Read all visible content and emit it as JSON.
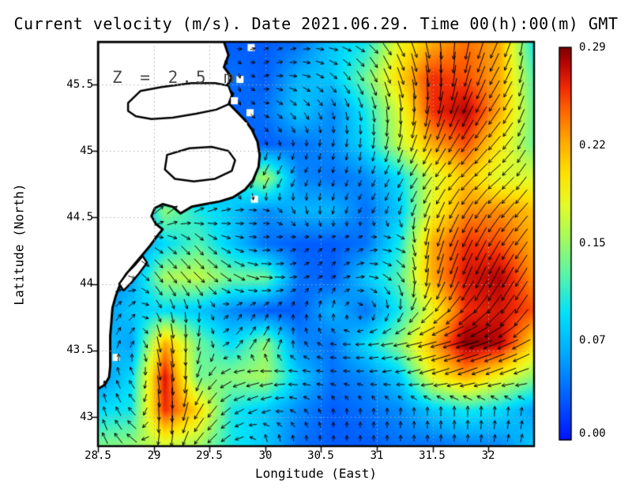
{
  "title": "Current velocity (m/s). Date 2021.06.29. Time 00(h):00(m) GMT",
  "annotation": "Z = 2.5 m",
  "axes": {
    "x": {
      "label": "Longitude (East)",
      "range": [
        28.5,
        32.41
      ],
      "ticks": [
        28.5,
        29,
        29.5,
        30,
        30.5,
        31,
        31.5,
        32
      ],
      "tick_labels": [
        "28.5",
        "29",
        "29.5",
        "30",
        "30.5",
        "31",
        "31.5",
        "32"
      ]
    },
    "y": {
      "label": "Latitude (North)",
      "range": [
        42.78,
        45.82
      ],
      "ticks": [
        45.5,
        45,
        44.5,
        44,
        43.5,
        43
      ],
      "tick_labels": [
        "45.5",
        "45",
        "44.5",
        "44",
        "43.5",
        "43"
      ]
    }
  },
  "colorbar": {
    "min": 0.0,
    "max": 0.29,
    "tick_labels": [
      "0.29",
      "0.22",
      "0.15",
      "0.07",
      "0.00"
    ],
    "stops": [
      [
        0.0,
        [
          0,
          20,
          255
        ]
      ],
      [
        0.1,
        [
          0,
          90,
          255
        ]
      ],
      [
        0.22,
        [
          0,
          170,
          255
        ]
      ],
      [
        0.32,
        [
          0,
          225,
          250
        ]
      ],
      [
        0.42,
        [
          90,
          245,
          170
        ]
      ],
      [
        0.52,
        [
          170,
          250,
          90
        ]
      ],
      [
        0.6,
        [
          230,
          250,
          40
        ]
      ],
      [
        0.68,
        [
          255,
          225,
          0
        ]
      ],
      [
        0.76,
        [
          255,
          170,
          0
        ]
      ],
      [
        0.84,
        [
          255,
          100,
          0
        ]
      ],
      [
        0.9,
        [
          240,
          40,
          5
        ]
      ],
      [
        0.96,
        [
          185,
          5,
          5
        ]
      ],
      [
        1.0,
        [
          125,
          0,
          0
        ]
      ]
    ]
  },
  "chart_data": {
    "type": "heatmap",
    "subtype": "vector_field_heatmap",
    "quantity": "current speed",
    "units": "m/s",
    "depth_m": 2.5,
    "grid_lon": [
      28.5,
      28.8,
      29.1,
      29.4,
      29.7,
      30.0,
      30.3,
      30.6,
      30.9,
      31.2,
      31.5,
      31.8,
      32.1,
      32.4
    ],
    "grid_lat": [
      45.8,
      45.55,
      45.3,
      45.05,
      44.8,
      44.55,
      44.3,
      44.05,
      43.8,
      43.55,
      43.3,
      43.05,
      42.8
    ],
    "speed": [
      [
        0.02,
        0.02,
        0.02,
        0.02,
        0.03,
        0.03,
        0.04,
        0.08,
        0.1,
        0.18,
        0.22,
        0.24,
        0.22,
        0.1
      ],
      [
        0.02,
        0.02,
        0.02,
        0.02,
        0.04,
        0.03,
        0.07,
        0.08,
        0.13,
        0.2,
        0.26,
        0.25,
        0.22,
        0.12
      ],
      [
        0.02,
        0.02,
        0.02,
        0.02,
        0.03,
        0.04,
        0.08,
        0.05,
        0.1,
        0.17,
        0.26,
        0.28,
        0.22,
        0.13
      ],
      [
        0.02,
        0.02,
        0.02,
        0.02,
        0.04,
        0.03,
        0.04,
        0.05,
        0.09,
        0.16,
        0.22,
        0.25,
        0.19,
        0.13
      ],
      [
        0.02,
        0.02,
        0.02,
        0.04,
        0.09,
        0.15,
        0.05,
        0.04,
        0.05,
        0.09,
        0.17,
        0.21,
        0.17,
        0.17
      ],
      [
        0.02,
        0.03,
        0.14,
        0.1,
        0.08,
        0.05,
        0.07,
        0.07,
        0.04,
        0.08,
        0.18,
        0.23,
        0.23,
        0.21
      ],
      [
        0.03,
        0.05,
        0.09,
        0.12,
        0.08,
        0.04,
        0.03,
        0.03,
        0.04,
        0.1,
        0.22,
        0.26,
        0.25,
        0.22
      ],
      [
        0.04,
        0.06,
        0.15,
        0.16,
        0.13,
        0.13,
        0.04,
        0.03,
        0.08,
        0.12,
        0.22,
        0.27,
        0.28,
        0.23
      ],
      [
        0.05,
        0.08,
        0.09,
        0.08,
        0.05,
        0.03,
        0.03,
        0.07,
        0.04,
        0.1,
        0.18,
        0.26,
        0.27,
        0.25
      ],
      [
        0.08,
        0.06,
        0.22,
        0.13,
        0.09,
        0.14,
        0.05,
        0.04,
        0.09,
        0.14,
        0.22,
        0.29,
        0.28,
        0.2
      ],
      [
        0.05,
        0.09,
        0.27,
        0.13,
        0.14,
        0.15,
        0.08,
        0.04,
        0.05,
        0.08,
        0.18,
        0.22,
        0.18,
        0.14
      ],
      [
        0.09,
        0.1,
        0.26,
        0.2,
        0.1,
        0.08,
        0.05,
        0.03,
        0.04,
        0.05,
        0.08,
        0.1,
        0.09,
        0.06
      ],
      [
        0.13,
        0.14,
        0.17,
        0.15,
        0.1,
        0.08,
        0.04,
        0.03,
        0.03,
        0.04,
        0.04,
        0.05,
        0.05,
        0.08
      ]
    ],
    "direction_deg": [
      [
        45,
        40,
        35,
        30,
        0,
        30,
        20,
        350,
        330,
        300,
        280,
        260,
        245,
        280
      ],
      [
        45,
        40,
        35,
        30,
        270,
        20,
        350,
        320,
        300,
        290,
        275,
        255,
        240,
        270
      ],
      [
        45,
        40,
        35,
        30,
        280,
        340,
        310,
        290,
        285,
        275,
        260,
        245,
        235,
        260
      ],
      [
        40,
        35,
        30,
        260,
        265,
        290,
        270,
        260,
        265,
        255,
        245,
        235,
        228,
        250
      ],
      [
        35,
        30,
        255,
        245,
        240,
        240,
        235,
        255,
        248,
        238,
        232,
        226,
        218,
        240
      ],
      [
        30,
        55,
        40,
        25,
        10,
        350,
        290,
        260,
        235,
        255,
        248,
        238,
        230,
        228
      ],
      [
        20,
        0,
        330,
        310,
        340,
        10,
        35,
        55,
        30,
        350,
        255,
        245,
        238,
        232
      ],
      [
        30,
        340,
        305,
        315,
        325,
        355,
        15,
        40,
        5,
        310,
        258,
        248,
        242,
        236
      ],
      [
        60,
        45,
        290,
        270,
        55,
        70,
        90,
        80,
        300,
        260,
        228,
        226,
        232,
        238
      ],
      [
        75,
        60,
        280,
        260,
        45,
        60,
        110,
        170,
        185,
        192,
        196,
        196,
        202,
        212
      ],
      [
        90,
        120,
        280,
        250,
        200,
        190,
        178,
        172,
        182,
        190,
        196,
        200,
        200,
        196
      ],
      [
        100,
        130,
        275,
        240,
        210,
        200,
        140,
        95,
        90,
        88,
        90,
        90,
        86,
        82
      ],
      [
        110,
        140,
        270,
        230,
        210,
        95,
        90,
        85,
        90,
        90,
        88,
        85,
        80,
        76
      ]
    ],
    "land": {
      "coast": [
        [
          29.63,
          45.82
        ],
        [
          29.67,
          45.72
        ],
        [
          29.63,
          45.63
        ],
        [
          29.7,
          45.55
        ],
        [
          29.65,
          45.48
        ],
        [
          29.71,
          45.43
        ],
        [
          29.68,
          45.35
        ],
        [
          29.75,
          45.29
        ],
        [
          29.82,
          45.23
        ],
        [
          29.88,
          45.16
        ],
        [
          29.93,
          45.07
        ],
        [
          29.95,
          44.97
        ],
        [
          29.94,
          44.88
        ],
        [
          29.89,
          44.78
        ],
        [
          29.82,
          44.71
        ],
        [
          29.71,
          44.65
        ],
        [
          29.59,
          44.62
        ],
        [
          29.46,
          44.6
        ],
        [
          29.34,
          44.58
        ],
        [
          29.24,
          44.53
        ],
        [
          29.17,
          44.58
        ],
        [
          29.08,
          44.6
        ],
        [
          29.01,
          44.57
        ],
        [
          28.98,
          44.51
        ],
        [
          29.02,
          44.45
        ],
        [
          29.08,
          44.41
        ],
        [
          29.04,
          44.37
        ],
        [
          28.97,
          44.29
        ],
        [
          28.9,
          44.22
        ],
        [
          28.83,
          44.15
        ],
        [
          28.75,
          44.07
        ],
        [
          28.7,
          44.0
        ],
        [
          28.66,
          43.91
        ],
        [
          28.63,
          43.82
        ],
        [
          28.62,
          43.71
        ],
        [
          28.61,
          43.61
        ],
        [
          28.61,
          43.49
        ],
        [
          28.61,
          43.38
        ],
        [
          28.6,
          43.3
        ],
        [
          28.56,
          43.24
        ],
        [
          28.5,
          43.21
        ],
        [
          28.5,
          45.82
        ]
      ],
      "lakes": [
        [
          [
            28.77,
            45.36
          ],
          [
            28.88,
            45.45
          ],
          [
            29.07,
            45.48
          ],
          [
            29.34,
            45.51
          ],
          [
            29.55,
            45.51
          ],
          [
            29.67,
            45.49
          ],
          [
            29.7,
            45.42
          ],
          [
            29.67,
            45.35
          ],
          [
            29.56,
            45.31
          ],
          [
            29.38,
            45.28
          ],
          [
            29.17,
            45.25
          ],
          [
            28.98,
            45.24
          ],
          [
            28.84,
            45.26
          ],
          [
            28.77,
            45.3
          ]
        ],
        [
          [
            29.12,
            44.97
          ],
          [
            29.32,
            45.02
          ],
          [
            29.52,
            45.03
          ],
          [
            29.67,
            45.0
          ],
          [
            29.73,
            44.93
          ],
          [
            29.7,
            44.85
          ],
          [
            29.55,
            44.79
          ],
          [
            29.36,
            44.77
          ],
          [
            29.19,
            44.79
          ],
          [
            29.1,
            44.86
          ]
        ],
        [
          [
            28.77,
            44.09
          ],
          [
            28.84,
            44.15
          ],
          [
            28.9,
            44.21
          ],
          [
            28.94,
            44.16
          ],
          [
            28.87,
            44.08
          ],
          [
            28.8,
            44.01
          ],
          [
            28.73,
            43.95
          ],
          [
            28.69,
            44.0
          ]
        ]
      ],
      "patches": [
        [
          29.87,
          45.78
        ],
        [
          29.77,
          45.54
        ],
        [
          29.72,
          45.38
        ],
        [
          29.86,
          45.29
        ],
        [
          29.8,
          45.19
        ],
        [
          29.9,
          44.64
        ],
        [
          28.66,
          43.45
        ]
      ]
    }
  }
}
